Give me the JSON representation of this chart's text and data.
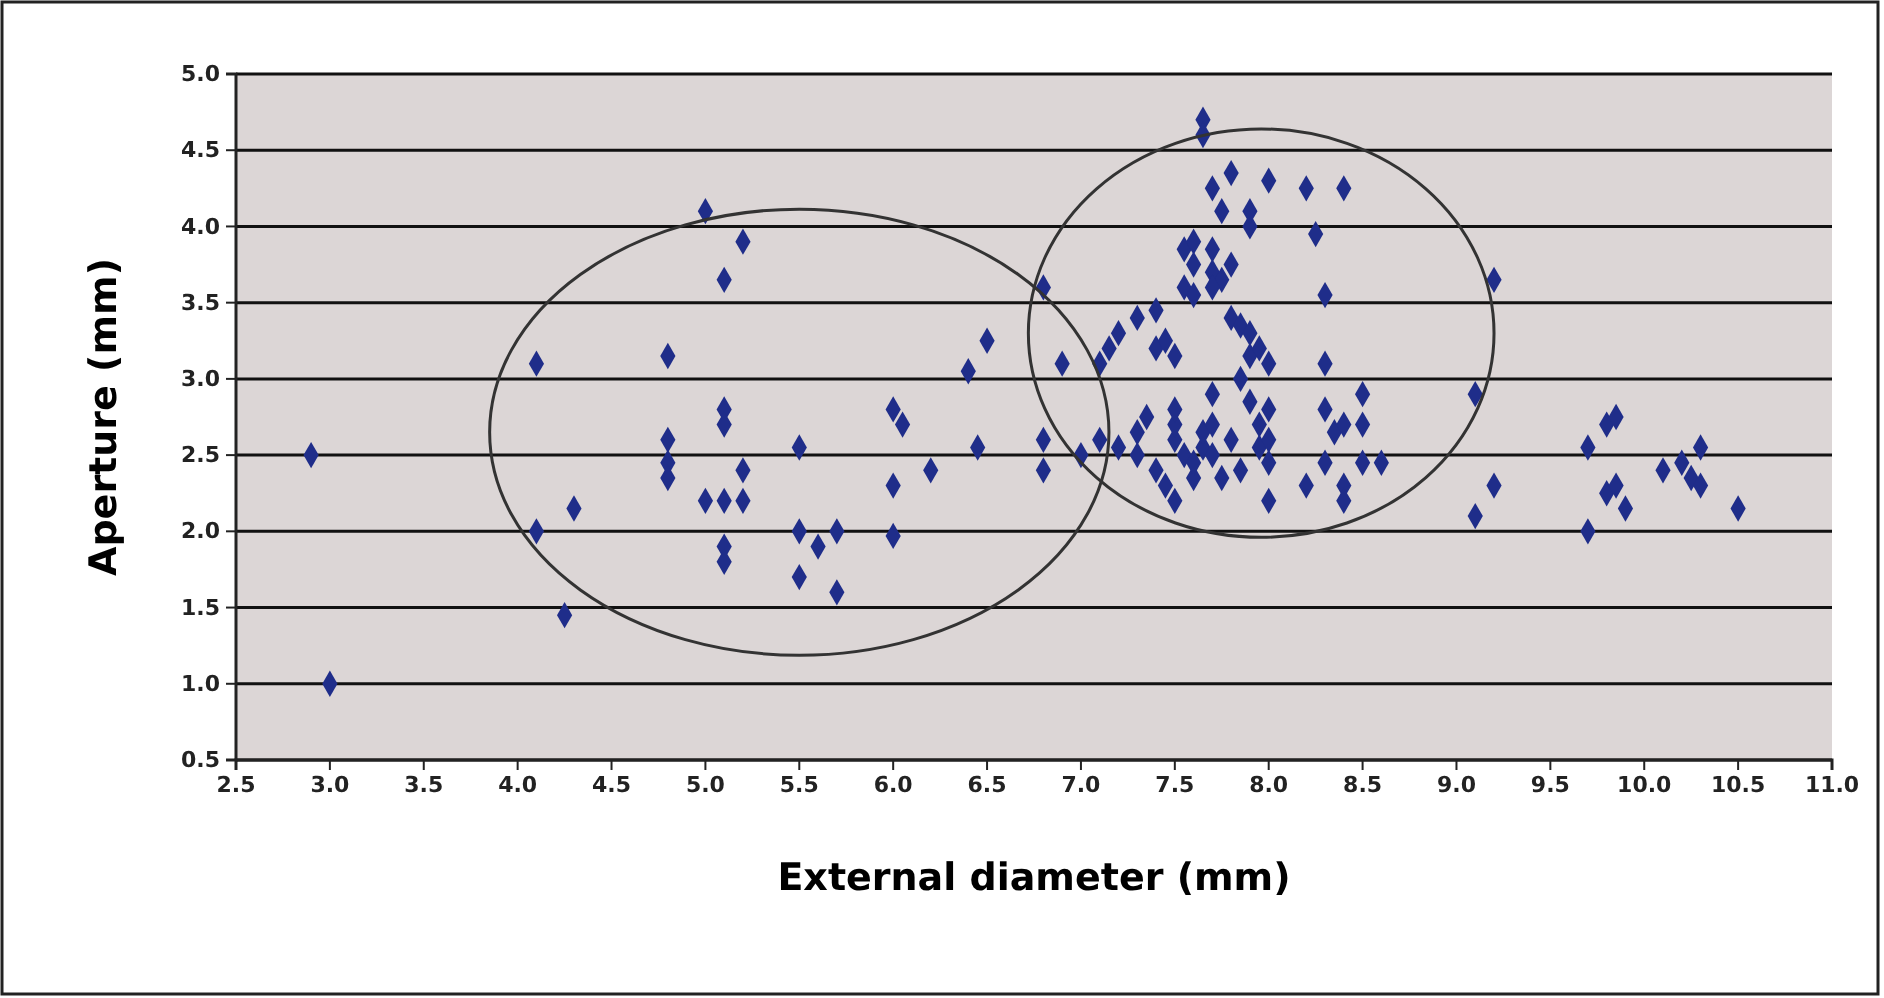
{
  "chart_data": {
    "type": "scatter",
    "xlabel": "External diameter (mm)",
    "ylabel": "Aperture (mm)",
    "xlim": [
      2.5,
      11.0
    ],
    "xticks": [
      {
        "value": 2.5,
        "label": "2.5"
      },
      {
        "value": 3,
        "label": "3.0"
      },
      {
        "value": 3.5,
        "label": "3.5"
      },
      {
        "value": 4,
        "label": "4.0"
      },
      {
        "value": 4.5,
        "label": "4.5"
      },
      {
        "value": 5,
        "label": "5.0"
      },
      {
        "value": 5.5,
        "label": "5.5"
      },
      {
        "value": 6,
        "label": "6.0"
      },
      {
        "value": 6.5,
        "label": "6.5"
      },
      {
        "value": 7,
        "label": "7.0"
      },
      {
        "value": 7.5,
        "label": "7.5"
      },
      {
        "value": 8,
        "label": "8.0"
      },
      {
        "value": 8.5,
        "label": "8.5"
      },
      {
        "value": 9,
        "label": "9.0"
      },
      {
        "value": 9.5,
        "label": "9.5"
      },
      {
        "value": 10,
        "label": "10.0"
      },
      {
        "value": 10.5,
        "label": "10.5"
      },
      {
        "value": 11,
        "label": "11.0"
      }
    ],
    "ylim": [
      0.5,
      5.0
    ],
    "yticks": [
      {
        "value": 0.5,
        "label": "0.5"
      },
      {
        "value": 1,
        "label": "1.0"
      },
      {
        "value": 1.5,
        "label": "1.5"
      },
      {
        "value": 2,
        "label": "2.0"
      },
      {
        "value": 2.5,
        "label": "2.5"
      },
      {
        "value": 3,
        "label": "3.0"
      },
      {
        "value": 3.5,
        "label": "3.5"
      },
      {
        "value": 4,
        "label": "4.0"
      },
      {
        "value": 4.5,
        "label": "4.5"
      },
      {
        "value": 5,
        "label": "5.0"
      }
    ],
    "grid": "y",
    "marker": "diamond",
    "series": [
      {
        "color": "#1f2d8a",
        "x": [
          2.9,
          3.0,
          4.1,
          4.1,
          4.3,
          4.25,
          4.8,
          4.8,
          4.8,
          4.8,
          5.0,
          5.1,
          5.2,
          5.1,
          5.1,
          5.0,
          5.1,
          5.2,
          5.1,
          5.1,
          5.2,
          5.5,
          5.5,
          5.5,
          5.6,
          5.7,
          5.7,
          6.0,
          6.05,
          6.0,
          6.0,
          6.2,
          6.4,
          6.5,
          6.45,
          6.8,
          6.8,
          6.8,
          6.9,
          7.0,
          7.1,
          7.15,
          7.2,
          7.3,
          7.4,
          7.1,
          7.2,
          7.3,
          7.3,
          7.35,
          7.4,
          7.45,
          7.5,
          7.4,
          7.45,
          7.5,
          7.5,
          7.5,
          7.5,
          7.55,
          7.55,
          7.6,
          7.6,
          7.55,
          7.6,
          7.6,
          7.6,
          7.65,
          7.65,
          7.65,
          7.65,
          7.7,
          7.7,
          7.75,
          7.7,
          7.7,
          7.7,
          7.7,
          7.75,
          7.7,
          7.8,
          7.75,
          7.8,
          7.8,
          7.85,
          7.85,
          7.8,
          7.85,
          7.9,
          7.9,
          7.9,
          7.9,
          7.9,
          7.95,
          7.95,
          7.95,
          8.0,
          8.0,
          8.0,
          8.0,
          8.0,
          8.0,
          8.2,
          8.25,
          8.3,
          8.3,
          8.3,
          8.35,
          8.3,
          8.2,
          8.4,
          8.4,
          8.4,
          8.4,
          8.5,
          8.5,
          8.5,
          8.6,
          9.1,
          9.1,
          9.2,
          9.2,
          9.7,
          9.7,
          9.8,
          9.85,
          9.8,
          9.9,
          9.85,
          10.1,
          10.2,
          10.3,
          10.25,
          10.3,
          10.5
        ],
        "values": [
          2.5,
          1.0,
          3.1,
          2.0,
          2.15,
          1.45,
          3.15,
          2.6,
          2.45,
          2.35,
          4.1,
          3.65,
          3.9,
          2.8,
          2.7,
          2.2,
          2.2,
          2.2,
          1.9,
          1.8,
          2.4,
          2.55,
          2.0,
          1.7,
          1.9,
          2.0,
          1.6,
          2.8,
          2.7,
          2.3,
          1.97,
          2.4,
          3.05,
          3.25,
          2.55,
          3.6,
          2.6,
          2.4,
          3.1,
          2.5,
          3.1,
          3.2,
          3.3,
          3.4,
          3.45,
          2.6,
          2.55,
          2.65,
          2.5,
          2.75,
          2.4,
          2.3,
          2.2,
          3.2,
          3.25,
          3.15,
          2.6,
          2.7,
          2.8,
          2.5,
          3.85,
          3.9,
          3.75,
          3.6,
          3.55,
          2.35,
          2.45,
          2.55,
          2.65,
          4.7,
          4.6,
          3.85,
          3.7,
          3.65,
          3.6,
          2.9,
          2.7,
          2.5,
          2.35,
          4.25,
          4.35,
          4.1,
          3.75,
          3.4,
          3.35,
          3.0,
          2.6,
          2.4,
          4.0,
          4.1,
          3.3,
          3.15,
          2.85,
          3.2,
          2.7,
          2.55,
          4.3,
          3.1,
          2.8,
          2.6,
          2.45,
          2.2,
          4.25,
          3.95,
          3.55,
          3.1,
          2.8,
          2.65,
          2.45,
          2.3,
          4.25,
          2.7,
          2.3,
          2.2,
          2.9,
          2.7,
          2.45,
          2.45,
          2.1,
          2.9,
          3.65,
          2.3,
          2.0,
          2.55,
          2.7,
          2.75,
          2.25,
          2.15,
          2.3,
          2.4,
          2.45,
          2.55,
          2.35,
          2.3,
          2.15
        ]
      }
    ]
  }
}
